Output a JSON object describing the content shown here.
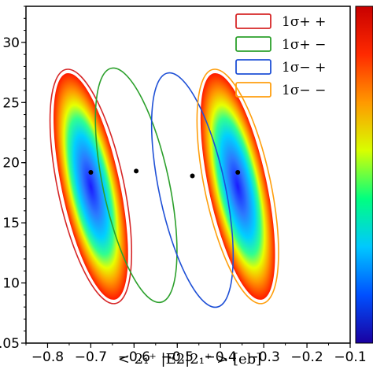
{
  "chart_data": {
    "type": "scatter",
    "xlabel": "< 2₁⁺ |E2|2₁⁺ > [eb]",
    "xlim": [
      -0.85,
      -0.1
    ],
    "ylim": [
      0.5,
      3.3
    ],
    "x_ticks": [
      "−0.8",
      "−0.7",
      "−0.6",
      "−0.5",
      "−0.4",
      "−0.3",
      "−0.2",
      "−0.1"
    ],
    "y_ticks": [
      ".05",
      "10",
      "15",
      "20",
      "25",
      "30"
    ],
    "grid": false,
    "legend_position": "top-right",
    "series": [
      {
        "name": "1σ+ +",
        "color": "#d62728",
        "center": [
          -0.7,
          1.92
        ],
        "fill_heatmap": true
      },
      {
        "name": "1σ+ −",
        "color": "#2ca02c",
        "center": [
          -0.595,
          1.93
        ],
        "fill_heatmap": false
      },
      {
        "name": "1σ− +",
        "color": "#1f50d6",
        "center": [
          -0.465,
          1.89
        ],
        "fill_heatmap": false
      },
      {
        "name": "1σ− −",
        "color": "#ff9f0e",
        "center": [
          -0.36,
          1.92
        ],
        "fill_heatmap": true
      }
    ],
    "points": [
      {
        "x": -0.7,
        "y": 1.92
      },
      {
        "x": -0.595,
        "y": 1.93
      },
      {
        "x": -0.465,
        "y": 1.89
      },
      {
        "x": -0.36,
        "y": 1.92
      }
    ],
    "colorbar": {
      "colors": [
        "#1a00a0",
        "#0050ff",
        "#00c8ff",
        "#00ff80",
        "#d8ff00",
        "#ff9900",
        "#ff2a00",
        "#c80000"
      ]
    }
  }
}
